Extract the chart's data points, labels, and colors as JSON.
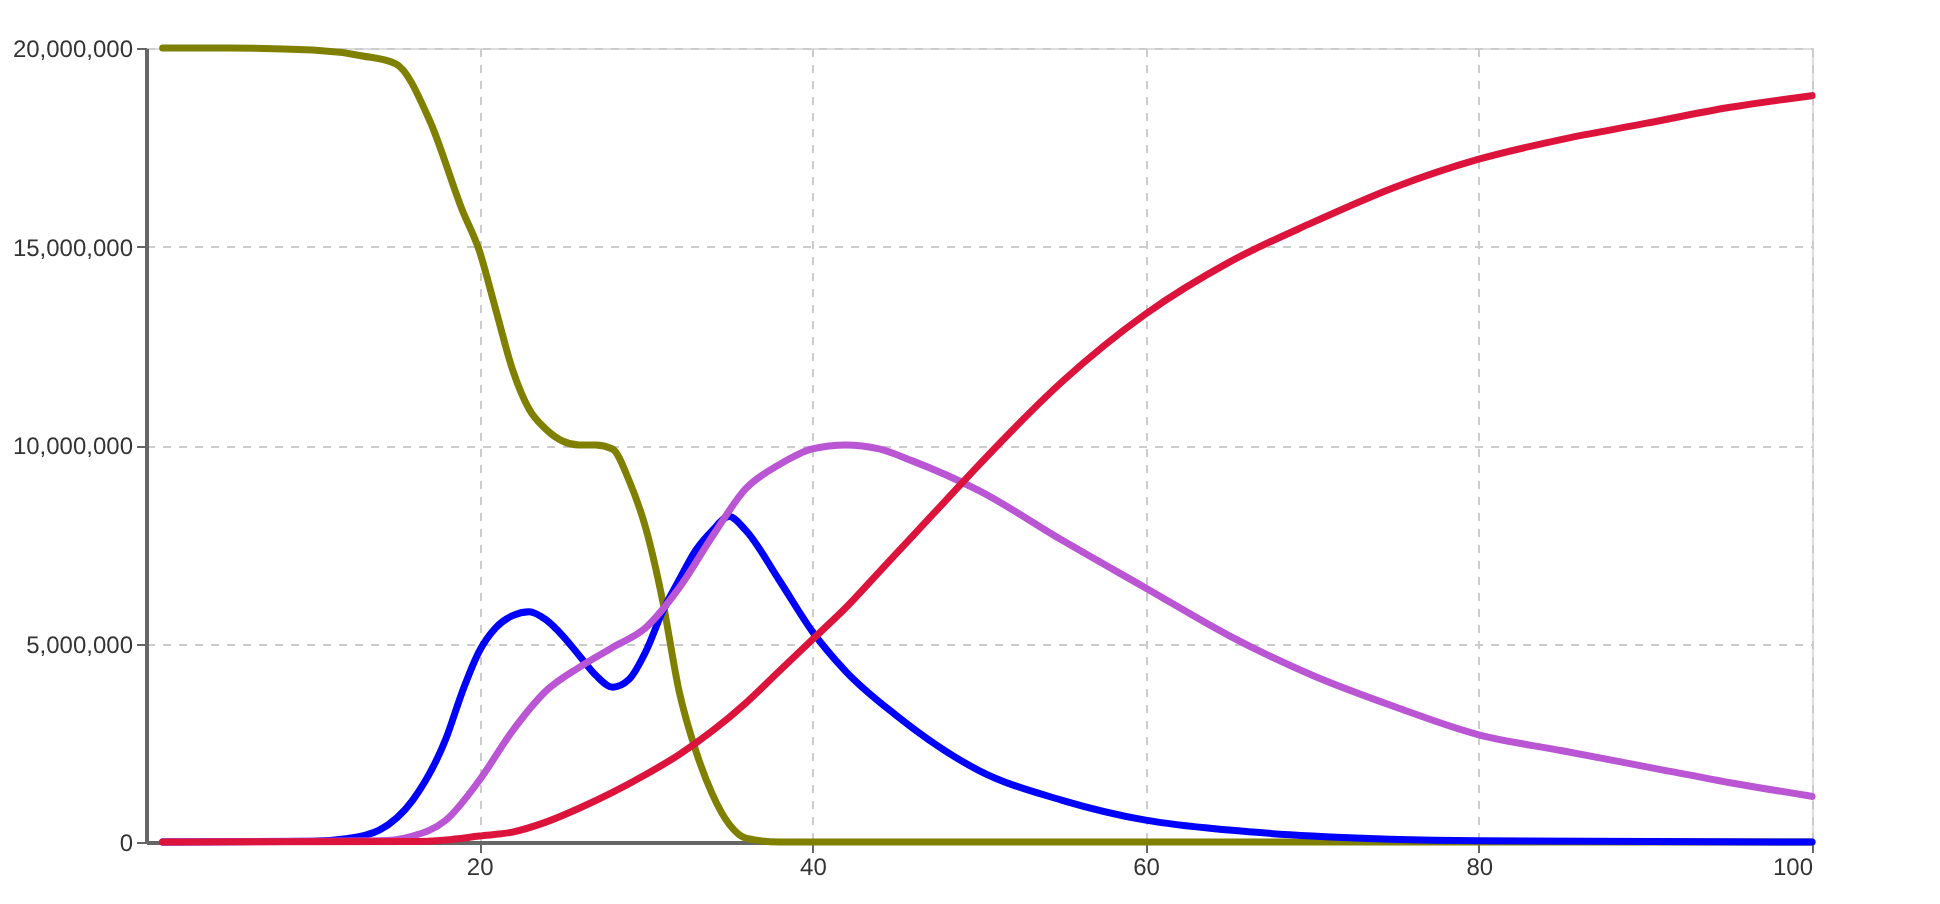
{
  "chart_data": {
    "type": "line",
    "xlim": [
      0,
      100
    ],
    "ylim": [
      0,
      20000000
    ],
    "xticks": [
      20,
      40,
      60,
      80,
      100
    ],
    "yticks": [
      0,
      {
        "value": 5000000,
        "label": "5,000,000"
      },
      {
        "value": 10000000,
        "label": "10,000,000"
      },
      {
        "value": 15000000,
        "label": "15,000,000"
      },
      {
        "value": 20000000,
        "label": "20,000,000"
      }
    ],
    "grid": true,
    "legend": false,
    "marker": "none",
    "line_style": "solid",
    "series": [
      {
        "color": "#808000",
        "x": [
          1,
          5,
          10,
          13,
          15,
          17,
          19,
          20,
          21,
          22,
          23,
          24,
          25,
          26,
          27,
          28,
          29,
          30,
          31,
          32,
          33,
          34,
          35,
          36,
          38,
          50,
          100
        ],
        "values": [
          20000000,
          20000000,
          19950000,
          19800000,
          19600000,
          18200000,
          15900000,
          14900000,
          13400000,
          11900000,
          10900000,
          10400000,
          10100000,
          10000000,
          10000000,
          9900000,
          9100000,
          7900000,
          6100000,
          3800000,
          2300000,
          1200000,
          450000,
          100000,
          0,
          0,
          0
        ]
      },
      {
        "color": "#0000ff",
        "x": [
          1,
          10,
          12,
          14,
          16,
          18,
          19,
          20,
          21,
          22,
          23,
          24,
          25,
          26,
          27,
          28,
          29,
          30,
          31,
          32,
          33,
          34,
          35,
          36,
          38,
          40,
          42,
          45,
          50,
          55,
          60,
          65,
          70,
          80,
          100
        ],
        "values": [
          0,
          20000,
          80000,
          300000,
          1050000,
          2600000,
          3800000,
          4800000,
          5400000,
          5700000,
          5800000,
          5600000,
          5200000,
          4700000,
          4200000,
          3900000,
          4100000,
          4800000,
          5800000,
          6600000,
          7350000,
          7850000,
          8200000,
          7850000,
          6600000,
          5300000,
          4300000,
          3200000,
          1800000,
          1050000,
          550000,
          300000,
          150000,
          30000,
          0
        ]
      },
      {
        "color": "#ba55d3",
        "x": [
          1,
          14,
          16,
          18,
          20,
          22,
          24,
          26,
          28,
          30,
          32,
          34,
          36,
          38,
          40,
          42,
          44,
          46,
          50,
          55,
          60,
          65,
          70,
          75,
          80,
          85,
          90,
          95,
          100
        ],
        "values": [
          0,
          30000,
          150000,
          550000,
          1550000,
          2800000,
          3800000,
          4400000,
          4900000,
          5400000,
          6400000,
          7700000,
          8900000,
          9500000,
          9900000,
          10000000,
          9900000,
          9600000,
          8850000,
          7600000,
          6400000,
          5200000,
          4200000,
          3400000,
          2700000,
          2300000,
          1900000,
          1500000,
          1150000
        ]
      },
      {
        "color": "#dc143c",
        "x": [
          1,
          16,
          18,
          20,
          22,
          24,
          26,
          28,
          30,
          32,
          34,
          36,
          38,
          40,
          42,
          44,
          46,
          48,
          50,
          55,
          60,
          65,
          70,
          75,
          80,
          85,
          90,
          95,
          100
        ],
        "values": [
          0,
          10000,
          50000,
          150000,
          250000,
          500000,
          850000,
          1250000,
          1700000,
          2200000,
          2800000,
          3500000,
          4300000,
          5100000,
          5900000,
          6800000,
          7700000,
          8600000,
          9500000,
          11600000,
          13300000,
          14600000,
          15600000,
          16500000,
          17200000,
          17700000,
          18100000,
          18500000,
          18800000
        ]
      }
    ]
  }
}
